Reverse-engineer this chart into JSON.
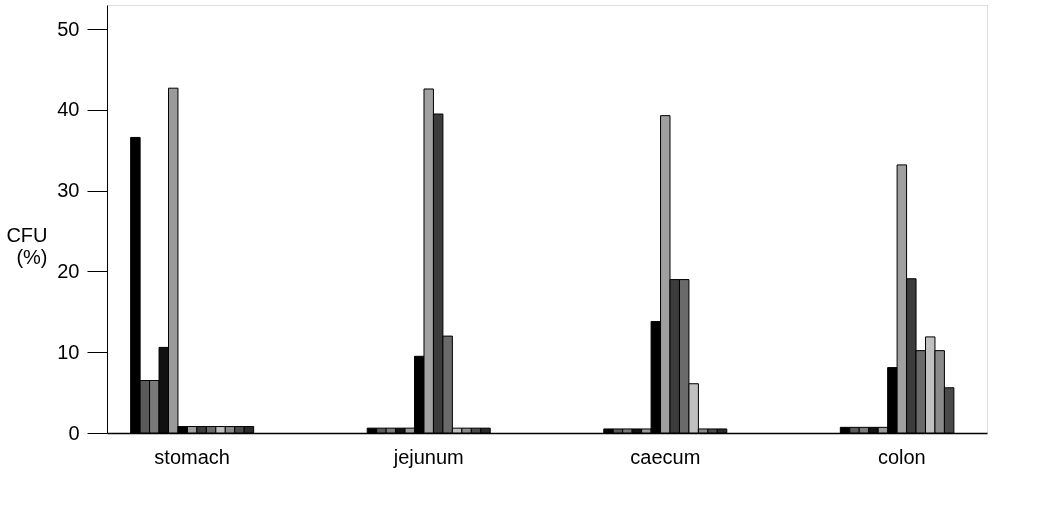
{
  "chart_data": {
    "type": "bar",
    "ylabel": "CFU\n(%)",
    "categories": [
      "stomach",
      "jejunum",
      "caecum",
      "colon"
    ],
    "ylim": [
      0,
      53
    ],
    "yticks": [
      0,
      10,
      20,
      30,
      40,
      50
    ],
    "grid": false,
    "legend": false,
    "series": [
      {
        "color": "#000000",
        "values": [
          36.6,
          0.6,
          0.5,
          0.7
        ]
      },
      {
        "color": "#5a5a5a",
        "values": [
          6.5,
          0.6,
          0.5,
          0.7
        ]
      },
      {
        "color": "#7a7a7a",
        "values": [
          6.5,
          0.6,
          0.5,
          0.7
        ]
      },
      {
        "color": "#111111",
        "values": [
          10.6,
          0.6,
          0.5,
          0.7
        ]
      },
      {
        "color": "#9a9a9a",
        "values": [
          42.7,
          0.6,
          0.5,
          0.7
        ]
      },
      {
        "color": "#000000",
        "values": [
          0.8,
          9.5,
          13.8,
          8.1
        ]
      },
      {
        "color": "#a0a0a0",
        "values": [
          0.8,
          42.6,
          39.3,
          33.2
        ]
      },
      {
        "color": "#3c3c3c",
        "values": [
          0.8,
          39.5,
          19.0,
          19.1
        ]
      },
      {
        "color": "#6a6a6a",
        "values": [
          0.8,
          12.0,
          19.0,
          10.2
        ]
      },
      {
        "color": "#c0c0c0",
        "values": [
          0.8,
          0.6,
          6.1,
          11.9
        ]
      },
      {
        "color": "#8a8a8a",
        "values": [
          0.8,
          0.6,
          0.5,
          10.2
        ]
      },
      {
        "color": "#4a4a4a",
        "values": [
          0.8,
          0.6,
          0.5,
          5.6
        ]
      },
      {
        "color": "#2a2a2a",
        "values": [
          0.8,
          0.6,
          0.5,
          null
        ]
      }
    ]
  }
}
